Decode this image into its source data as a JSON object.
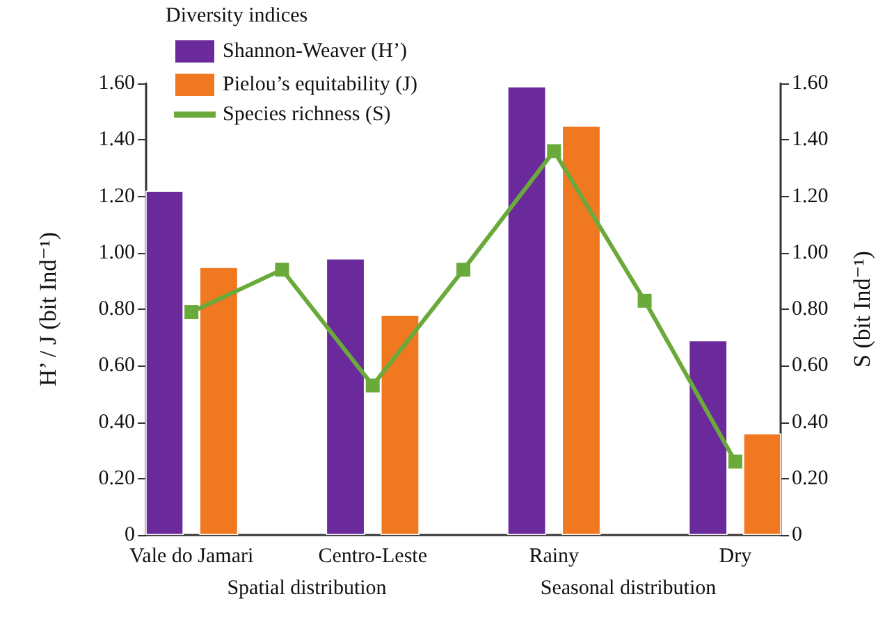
{
  "chart_data": {
    "type": "bar",
    "categories": [
      "Vale do Jamari",
      null,
      "Centro-Leste",
      null,
      "Rainy",
      null,
      "Dry"
    ],
    "series": [
      {
        "name": "Shannon-Weaver (H’)",
        "color": "#6a2a9c",
        "values": [
          1.22,
          null,
          0.98,
          null,
          1.59,
          null,
          0.69
        ]
      },
      {
        "name": "Pielou’s equitability (J)",
        "color": "#f07820",
        "values": [
          0.95,
          null,
          0.78,
          null,
          1.45,
          null,
          0.36
        ]
      },
      {
        "name": "Species richness (S)",
        "type": "line",
        "axis": "y2",
        "color": "#6aaa3a",
        "values": [
          0.79,
          0.94,
          0.53,
          0.94,
          1.36,
          0.83,
          0.26
        ]
      }
    ],
    "ylabel": "H’ / J (bit Ind⁻¹)",
    "y2label": "S (bit Ind⁻¹)",
    "legend_title": "Diversity indices",
    "legend": "top left",
    "ylim": [
      0,
      1.6
    ],
    "yticks": [
      0,
      {
        "value": 0.2,
        "label": "0.20"
      },
      {
        "value": 0.4,
        "label": "0.40"
      },
      {
        "value": 0.6,
        "label": "0.60"
      },
      {
        "value": 0.8,
        "label": "0.80"
      },
      {
        "value": 1,
        "label": "1.00"
      },
      {
        "value": 1.2,
        "label": "1.20"
      },
      {
        "value": 1.4,
        "label": "1.40"
      },
      {
        "value": 1.6,
        "label": "1.60"
      }
    ],
    "y2lim": [
      0,
      1.6
    ],
    "y2ticks": [
      0,
      {
        "value": 0.2,
        "label": "0.20"
      },
      {
        "value": 0.4,
        "label": "0.40"
      },
      {
        "value": 0.6,
        "label": "0.60"
      },
      {
        "value": 0.8,
        "label": "0.80"
      },
      {
        "value": 1,
        "label": "1.00"
      },
      {
        "value": 1.2,
        "label": "1.20"
      },
      {
        "value": 1.4,
        "label": "1.40"
      },
      {
        "value": 1.6,
        "label": "1.60"
      }
    ],
    "annotations": [
      "Spatial distribution",
      "Seasonal distribution"
    ],
    "marker": "square",
    "line_style": "solid",
    "grid": false
  }
}
